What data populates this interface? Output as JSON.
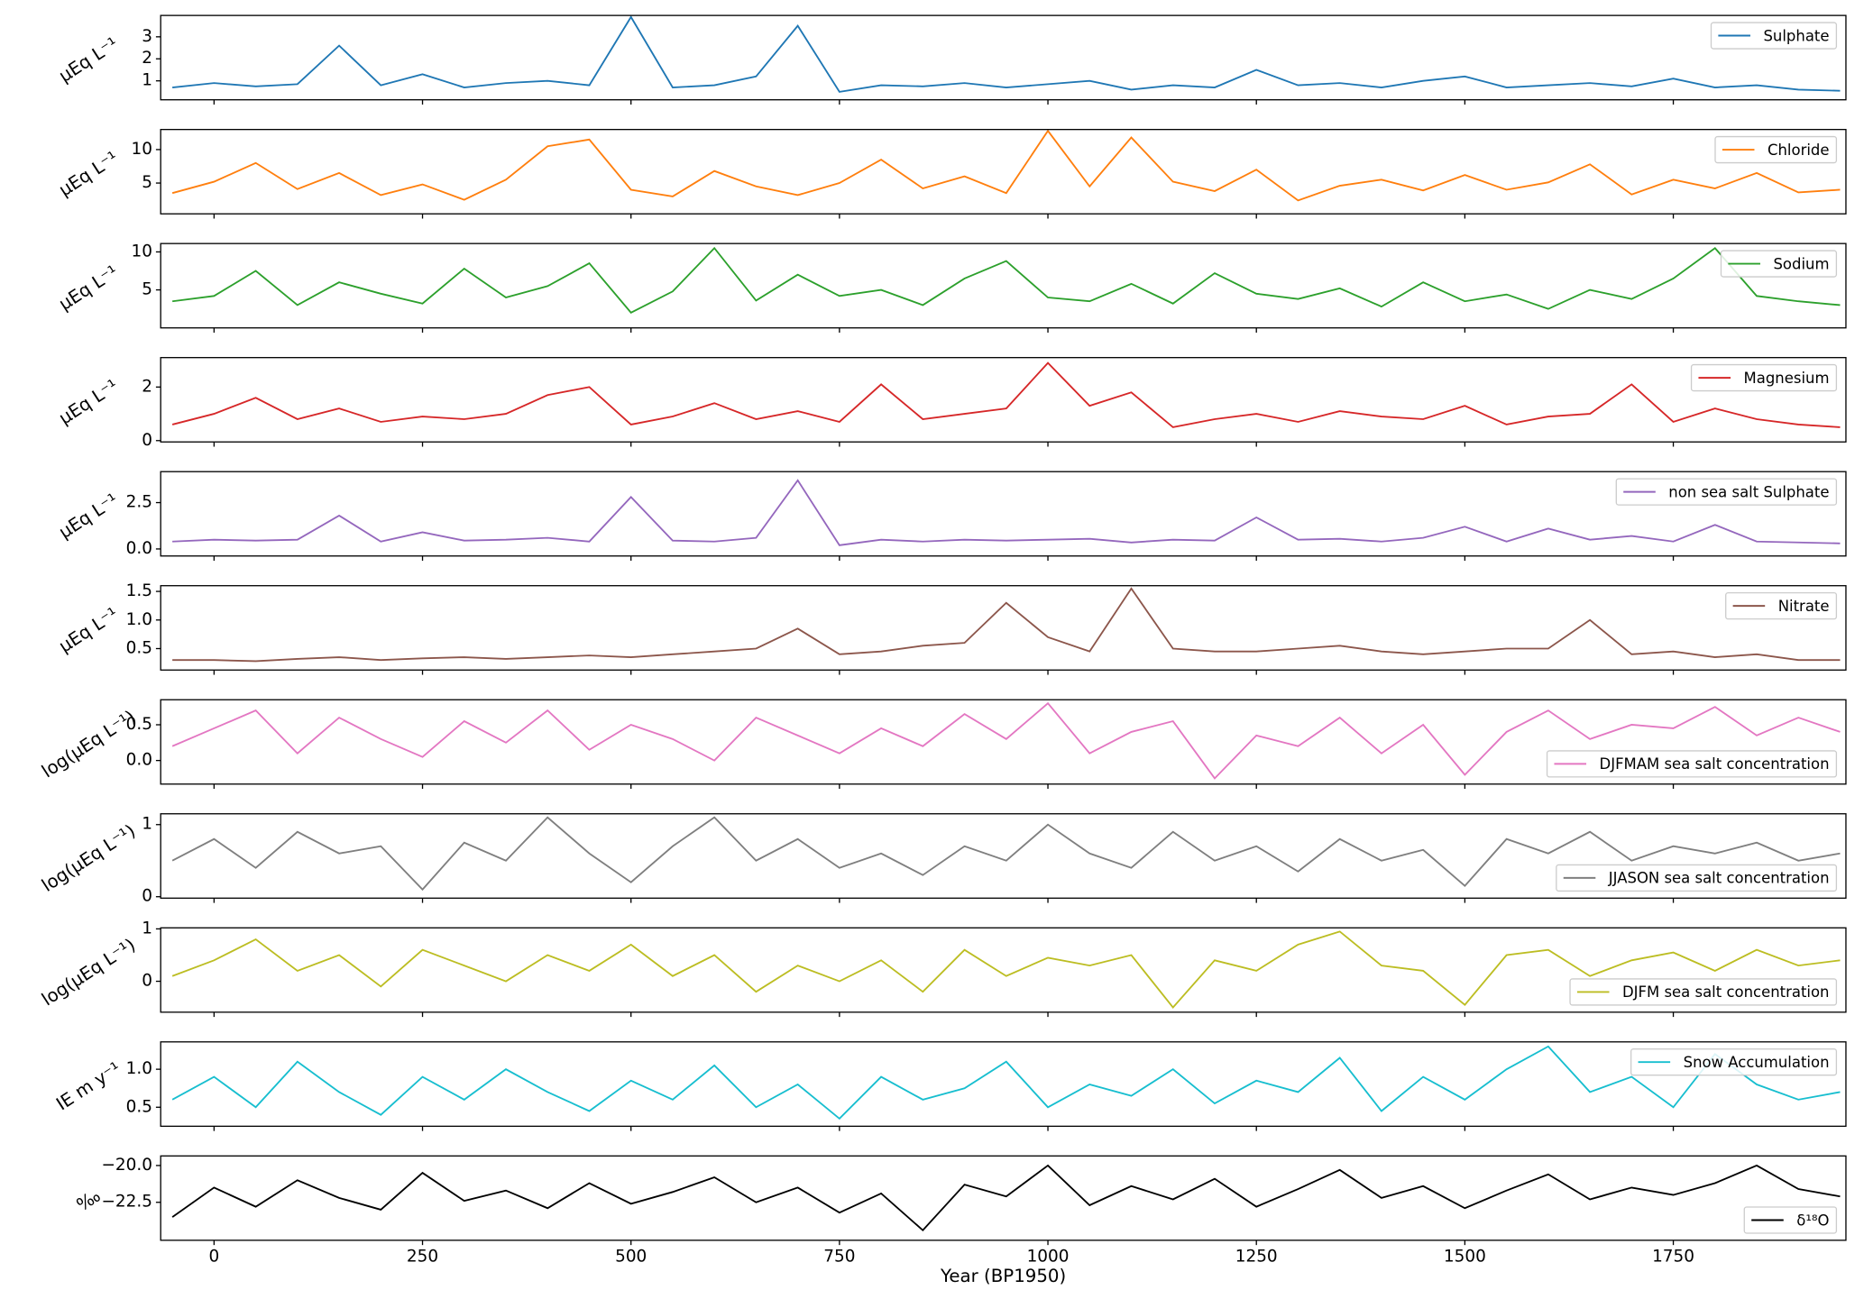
{
  "chart_data": [
    {
      "type": "line",
      "ylabel": "μEq L⁻¹",
      "legend": "upper right",
      "xlim": [
        -64,
        1957
      ],
      "ylim": [
        0.14,
        3.97
      ],
      "yticks": [
        1,
        2,
        3
      ],
      "x": [
        -50,
        0,
        50,
        100,
        150,
        200,
        250,
        300,
        350,
        400,
        450,
        500,
        550,
        600,
        650,
        700,
        750,
        800,
        850,
        900,
        950,
        1000,
        1050,
        1100,
        1150,
        1200,
        1250,
        1300,
        1350,
        1400,
        1450,
        1500,
        1550,
        1600,
        1650,
        1700,
        1750,
        1800,
        1850,
        1900,
        1950
      ],
      "series": [
        {
          "name": "Sulphate",
          "color": "#1f77b4",
          "values": [
            0.7,
            0.9,
            0.75,
            0.85,
            2.6,
            0.8,
            1.3,
            0.7,
            0.9,
            1.0,
            0.8,
            3.9,
            0.7,
            0.8,
            1.2,
            3.5,
            0.5,
            0.8,
            0.75,
            0.9,
            0.7,
            0.85,
            1.0,
            0.6,
            0.8,
            0.7,
            1.5,
            0.8,
            0.9,
            0.7,
            1.0,
            1.2,
            0.7,
            0.8,
            0.9,
            0.75,
            1.1,
            0.7,
            0.8,
            0.6,
            0.55
          ]
        }
      ]
    },
    {
      "type": "line",
      "ylabel": "μEq L⁻¹",
      "legend": "upper right",
      "xlim": [
        -64,
        1957
      ],
      "ylim": [
        0.4,
        13.0
      ],
      "yticks": [
        5,
        10
      ],
      "x": [
        -50,
        0,
        50,
        100,
        150,
        200,
        250,
        300,
        350,
        400,
        450,
        500,
        550,
        600,
        650,
        700,
        750,
        800,
        850,
        900,
        950,
        1000,
        1050,
        1100,
        1150,
        1200,
        1250,
        1300,
        1350,
        1400,
        1450,
        1500,
        1550,
        1600,
        1650,
        1700,
        1750,
        1800,
        1850,
        1900,
        1950
      ],
      "series": [
        {
          "name": "Chloride",
          "color": "#ff7f0e",
          "values": [
            3.5,
            5.2,
            8.0,
            4.1,
            6.5,
            3.2,
            4.8,
            2.5,
            5.5,
            10.5,
            11.5,
            4.0,
            3.0,
            6.8,
            4.5,
            3.2,
            5.0,
            8.5,
            4.2,
            6.0,
            3.5,
            12.8,
            4.5,
            11.8,
            5.2,
            3.8,
            7.0,
            2.4,
            4.6,
            5.5,
            3.9,
            6.2,
            4.0,
            5.1,
            7.8,
            3.3,
            5.5,
            4.2,
            6.5,
            3.6,
            4.0
          ]
        }
      ]
    },
    {
      "type": "line",
      "ylabel": "μEq L⁻¹",
      "legend": "upper right",
      "xlim": [
        -64,
        1957
      ],
      "ylim": [
        0,
        11.1
      ],
      "yticks": [
        5,
        10
      ],
      "x": [
        -50,
        0,
        50,
        100,
        150,
        200,
        250,
        300,
        350,
        400,
        450,
        500,
        550,
        600,
        650,
        700,
        750,
        800,
        850,
        900,
        950,
        1000,
        1050,
        1100,
        1150,
        1200,
        1250,
        1300,
        1350,
        1400,
        1450,
        1500,
        1550,
        1600,
        1650,
        1700,
        1750,
        1800,
        1850,
        1900,
        1950
      ],
      "series": [
        {
          "name": "Sodium",
          "color": "#2ca02c",
          "values": [
            3.5,
            4.2,
            7.5,
            3.0,
            6.0,
            4.5,
            3.2,
            7.8,
            4.0,
            5.5,
            8.5,
            2.0,
            4.8,
            10.5,
            3.6,
            7.0,
            4.2,
            5.0,
            3.0,
            6.5,
            8.8,
            4.0,
            3.5,
            5.8,
            3.2,
            7.2,
            4.5,
            3.8,
            5.2,
            2.8,
            6.0,
            3.5,
            4.4,
            2.5,
            5.0,
            3.8,
            6.5,
            10.5,
            4.2,
            3.5,
            3.0
          ]
        }
      ]
    },
    {
      "type": "line",
      "ylabel": "μEq L⁻¹",
      "legend": "upper right",
      "xlim": [
        -64,
        1957
      ],
      "ylim": [
        -0.05,
        3.1
      ],
      "yticks": [
        0,
        2
      ],
      "x": [
        -50,
        0,
        50,
        100,
        150,
        200,
        250,
        300,
        350,
        400,
        450,
        500,
        550,
        600,
        650,
        700,
        750,
        800,
        850,
        900,
        950,
        1000,
        1050,
        1100,
        1150,
        1200,
        1250,
        1300,
        1350,
        1400,
        1450,
        1500,
        1550,
        1600,
        1650,
        1700,
        1750,
        1800,
        1850,
        1900,
        1950
      ],
      "series": [
        {
          "name": "Magnesium",
          "color": "#d62728",
          "values": [
            0.6,
            1.0,
            1.6,
            0.8,
            1.2,
            0.7,
            0.9,
            0.8,
            1.0,
            1.7,
            2.0,
            0.6,
            0.9,
            1.4,
            0.8,
            1.1,
            0.7,
            2.1,
            0.8,
            1.0,
            1.2,
            2.9,
            1.3,
            1.8,
            0.5,
            0.8,
            1.0,
            0.7,
            1.1,
            0.9,
            0.8,
            1.3,
            0.6,
            0.9,
            1.0,
            2.1,
            0.7,
            1.2,
            0.8,
            0.6,
            0.5
          ]
        }
      ]
    },
    {
      "type": "line",
      "ylabel": "μEq L⁻¹",
      "legend": "upper right",
      "xlim": [
        -64,
        1957
      ],
      "ylim": [
        -0.38,
        4.17
      ],
      "yticks": [
        {
          "value": 0,
          "label": "0.0"
        },
        2.5
      ],
      "x": [
        -50,
        0,
        50,
        100,
        150,
        200,
        250,
        300,
        350,
        400,
        450,
        500,
        550,
        600,
        650,
        700,
        750,
        800,
        850,
        900,
        950,
        1000,
        1050,
        1100,
        1150,
        1200,
        1250,
        1300,
        1350,
        1400,
        1450,
        1500,
        1550,
        1600,
        1650,
        1700,
        1750,
        1800,
        1850,
        1900,
        1950
      ],
      "series": [
        {
          "name": "non sea salt Sulphate",
          "color": "#9467bd",
          "values": [
            0.4,
            0.5,
            0.45,
            0.5,
            1.8,
            0.4,
            0.9,
            0.45,
            0.5,
            0.6,
            0.4,
            2.8,
            0.45,
            0.4,
            0.6,
            3.7,
            0.2,
            0.5,
            0.4,
            0.5,
            0.45,
            0.5,
            0.55,
            0.35,
            0.5,
            0.45,
            1.7,
            0.5,
            0.55,
            0.4,
            0.6,
            1.2,
            0.4,
            1.1,
            0.5,
            0.7,
            0.4,
            1.3,
            0.4,
            0.35,
            0.3
          ]
        }
      ]
    },
    {
      "type": "line",
      "ylabel": "μEq L⁻¹",
      "legend": "upper right",
      "xlim": [
        -64,
        1957
      ],
      "ylim": [
        0.125,
        1.6
      ],
      "yticks": [
        0.5,
        {
          "value": 1,
          "label": "1.0"
        },
        1.5
      ],
      "x": [
        -50,
        0,
        50,
        100,
        150,
        200,
        250,
        300,
        350,
        400,
        450,
        500,
        550,
        600,
        650,
        700,
        750,
        800,
        850,
        900,
        950,
        1000,
        1050,
        1100,
        1150,
        1200,
        1250,
        1300,
        1350,
        1400,
        1450,
        1500,
        1550,
        1600,
        1650,
        1700,
        1750,
        1800,
        1850,
        1900,
        1950
      ],
      "series": [
        {
          "name": "Nitrate",
          "color": "#8c564b",
          "values": [
            0.3,
            0.3,
            0.28,
            0.32,
            0.35,
            0.3,
            0.33,
            0.35,
            0.32,
            0.35,
            0.38,
            0.35,
            0.4,
            0.45,
            0.5,
            0.85,
            0.4,
            0.45,
            0.55,
            0.6,
            1.3,
            0.7,
            0.45,
            1.55,
            0.5,
            0.45,
            0.45,
            0.5,
            0.55,
            0.45,
            0.4,
            0.45,
            0.5,
            0.5,
            1.0,
            0.4,
            0.45,
            0.35,
            0.4,
            0.3,
            0.3
          ]
        }
      ]
    },
    {
      "type": "line",
      "ylabel": "log(μEq L⁻¹)",
      "legend": "lower right",
      "xlim": [
        -64,
        1957
      ],
      "ylim": [
        -0.33,
        0.85
      ],
      "yticks": [
        {
          "value": 0,
          "label": "0.0"
        },
        0.5
      ],
      "x": [
        -50,
        0,
        50,
        100,
        150,
        200,
        250,
        300,
        350,
        400,
        450,
        500,
        550,
        600,
        650,
        700,
        750,
        800,
        850,
        900,
        950,
        1000,
        1050,
        1100,
        1150,
        1200,
        1250,
        1300,
        1350,
        1400,
        1450,
        1500,
        1550,
        1600,
        1650,
        1700,
        1750,
        1800,
        1850,
        1900,
        1950
      ],
      "series": [
        {
          "name": "DJFMAM sea salt concentration",
          "color": "#e377c2",
          "values": [
            0.2,
            0.45,
            0.7,
            0.1,
            0.6,
            0.3,
            0.05,
            0.55,
            0.25,
            0.7,
            0.15,
            0.5,
            0.3,
            0.0,
            0.6,
            0.35,
            0.1,
            0.45,
            0.2,
            0.65,
            0.3,
            0.8,
            0.1,
            0.4,
            0.55,
            -0.25,
            0.35,
            0.2,
            0.6,
            0.1,
            0.5,
            -0.2,
            0.4,
            0.7,
            0.3,
            0.5,
            0.45,
            0.75,
            0.35,
            0.6,
            0.4
          ]
        }
      ]
    },
    {
      "type": "line",
      "ylabel": "log(μEq L⁻¹)",
      "legend": "lower right",
      "xlim": [
        -64,
        1957
      ],
      "ylim": [
        -0.02,
        1.15
      ],
      "yticks": [
        0,
        1
      ],
      "x": [
        -50,
        0,
        50,
        100,
        150,
        200,
        250,
        300,
        350,
        400,
        450,
        500,
        550,
        600,
        650,
        700,
        750,
        800,
        850,
        900,
        950,
        1000,
        1050,
        1100,
        1150,
        1200,
        1250,
        1300,
        1350,
        1400,
        1450,
        1500,
        1550,
        1600,
        1650,
        1700,
        1750,
        1800,
        1850,
        1900,
        1950
      ],
      "series": [
        {
          "name": "JJASON sea salt concentration",
          "color": "#7f7f7f",
          "values": [
            0.5,
            0.8,
            0.4,
            0.9,
            0.6,
            0.7,
            0.1,
            0.75,
            0.5,
            1.1,
            0.6,
            0.2,
            0.7,
            1.1,
            0.5,
            0.8,
            0.4,
            0.6,
            0.3,
            0.7,
            0.5,
            1.0,
            0.6,
            0.4,
            0.9,
            0.5,
            0.7,
            0.35,
            0.8,
            0.5,
            0.65,
            0.15,
            0.8,
            0.6,
            0.9,
            0.5,
            0.7,
            0.6,
            0.75,
            0.5,
            0.6
          ]
        }
      ]
    },
    {
      "type": "line",
      "ylabel": "log(μEq L⁻¹)",
      "legend": "lower right",
      "xlim": [
        -64,
        1957
      ],
      "ylim": [
        -0.59,
        1.02
      ],
      "yticks": [
        0,
        1
      ],
      "x": [
        -50,
        0,
        50,
        100,
        150,
        200,
        250,
        300,
        350,
        400,
        450,
        500,
        550,
        600,
        650,
        700,
        750,
        800,
        850,
        900,
        950,
        1000,
        1050,
        1100,
        1150,
        1200,
        1250,
        1300,
        1350,
        1400,
        1450,
        1500,
        1550,
        1600,
        1650,
        1700,
        1750,
        1800,
        1850,
        1900,
        1950
      ],
      "series": [
        {
          "name": "DJFM sea salt concentration",
          "color": "#bcbd22",
          "values": [
            0.1,
            0.4,
            0.8,
            0.2,
            0.5,
            -0.1,
            0.6,
            0.3,
            0.0,
            0.5,
            0.2,
            0.7,
            0.1,
            0.5,
            -0.2,
            0.3,
            0.0,
            0.4,
            -0.2,
            0.6,
            0.1,
            0.45,
            0.3,
            0.5,
            -0.5,
            0.4,
            0.2,
            0.7,
            0.95,
            0.3,
            0.2,
            -0.45,
            0.5,
            0.6,
            0.1,
            0.4,
            0.55,
            0.2,
            0.6,
            0.3,
            0.4
          ]
        }
      ]
    },
    {
      "type": "line",
      "ylabel": "IE m y⁻¹",
      "legend": "upper right",
      "xlim": [
        -64,
        1957
      ],
      "ylim": [
        0.25,
        1.36
      ],
      "yticks": [
        0.5,
        {
          "value": 1,
          "label": "1.0"
        }
      ],
      "x": [
        -50,
        0,
        50,
        100,
        150,
        200,
        250,
        300,
        350,
        400,
        450,
        500,
        550,
        600,
        650,
        700,
        750,
        800,
        850,
        900,
        950,
        1000,
        1050,
        1100,
        1150,
        1200,
        1250,
        1300,
        1350,
        1400,
        1450,
        1500,
        1550,
        1600,
        1650,
        1700,
        1750,
        1800,
        1850,
        1900,
        1950
      ],
      "series": [
        {
          "name": "Snow Accumulation",
          "color": "#17becf",
          "values": [
            0.6,
            0.9,
            0.5,
            1.1,
            0.7,
            0.4,
            0.9,
            0.6,
            1.0,
            0.7,
            0.45,
            0.85,
            0.6,
            1.05,
            0.5,
            0.8,
            0.35,
            0.9,
            0.6,
            0.75,
            1.1,
            0.5,
            0.8,
            0.65,
            1.0,
            0.55,
            0.85,
            0.7,
            1.15,
            0.45,
            0.9,
            0.6,
            1.0,
            1.3,
            0.7,
            0.9,
            0.5,
            1.2,
            0.8,
            0.6,
            0.7
          ]
        }
      ]
    },
    {
      "type": "line",
      "ylabel": "‰",
      "legend": "lower right",
      "xlabel": "Year (BP1950)",
      "xlim": [
        -64,
        1957
      ],
      "ylim": [
        -25.08,
        -19.35
      ],
      "yticks": [
        {
          "value": -20,
          "label": "−20.0"
        },
        {
          "value": -22.5,
          "label": "−22.5"
        }
      ],
      "xticks": [
        0,
        250,
        500,
        750,
        1000,
        1250,
        1500,
        1750
      ],
      "x": [
        -50,
        0,
        50,
        100,
        150,
        200,
        250,
        300,
        350,
        400,
        450,
        500,
        550,
        600,
        650,
        700,
        750,
        800,
        850,
        900,
        950,
        1000,
        1050,
        1100,
        1150,
        1200,
        1250,
        1300,
        1350,
        1400,
        1450,
        1500,
        1550,
        1600,
        1650,
        1700,
        1750,
        1800,
        1850,
        1900,
        1950
      ],
      "series": [
        {
          "name": "δ¹⁸O",
          "color": "#000000",
          "values": [
            -23.5,
            -21.5,
            -22.8,
            -21.0,
            -22.2,
            -23.0,
            -20.5,
            -22.4,
            -21.7,
            -22.9,
            -21.2,
            -22.6,
            -21.8,
            -20.8,
            -22.5,
            -21.5,
            -23.2,
            -21.9,
            -24.4,
            -21.3,
            -22.1,
            -20.0,
            -22.7,
            -21.4,
            -22.3,
            -20.9,
            -22.8,
            -21.6,
            -20.3,
            -22.2,
            -21.4,
            -22.9,
            -21.7,
            -20.6,
            -22.3,
            -21.5,
            -22.0,
            -21.2,
            -20.0,
            -21.6,
            -22.1
          ]
        }
      ]
    }
  ]
}
